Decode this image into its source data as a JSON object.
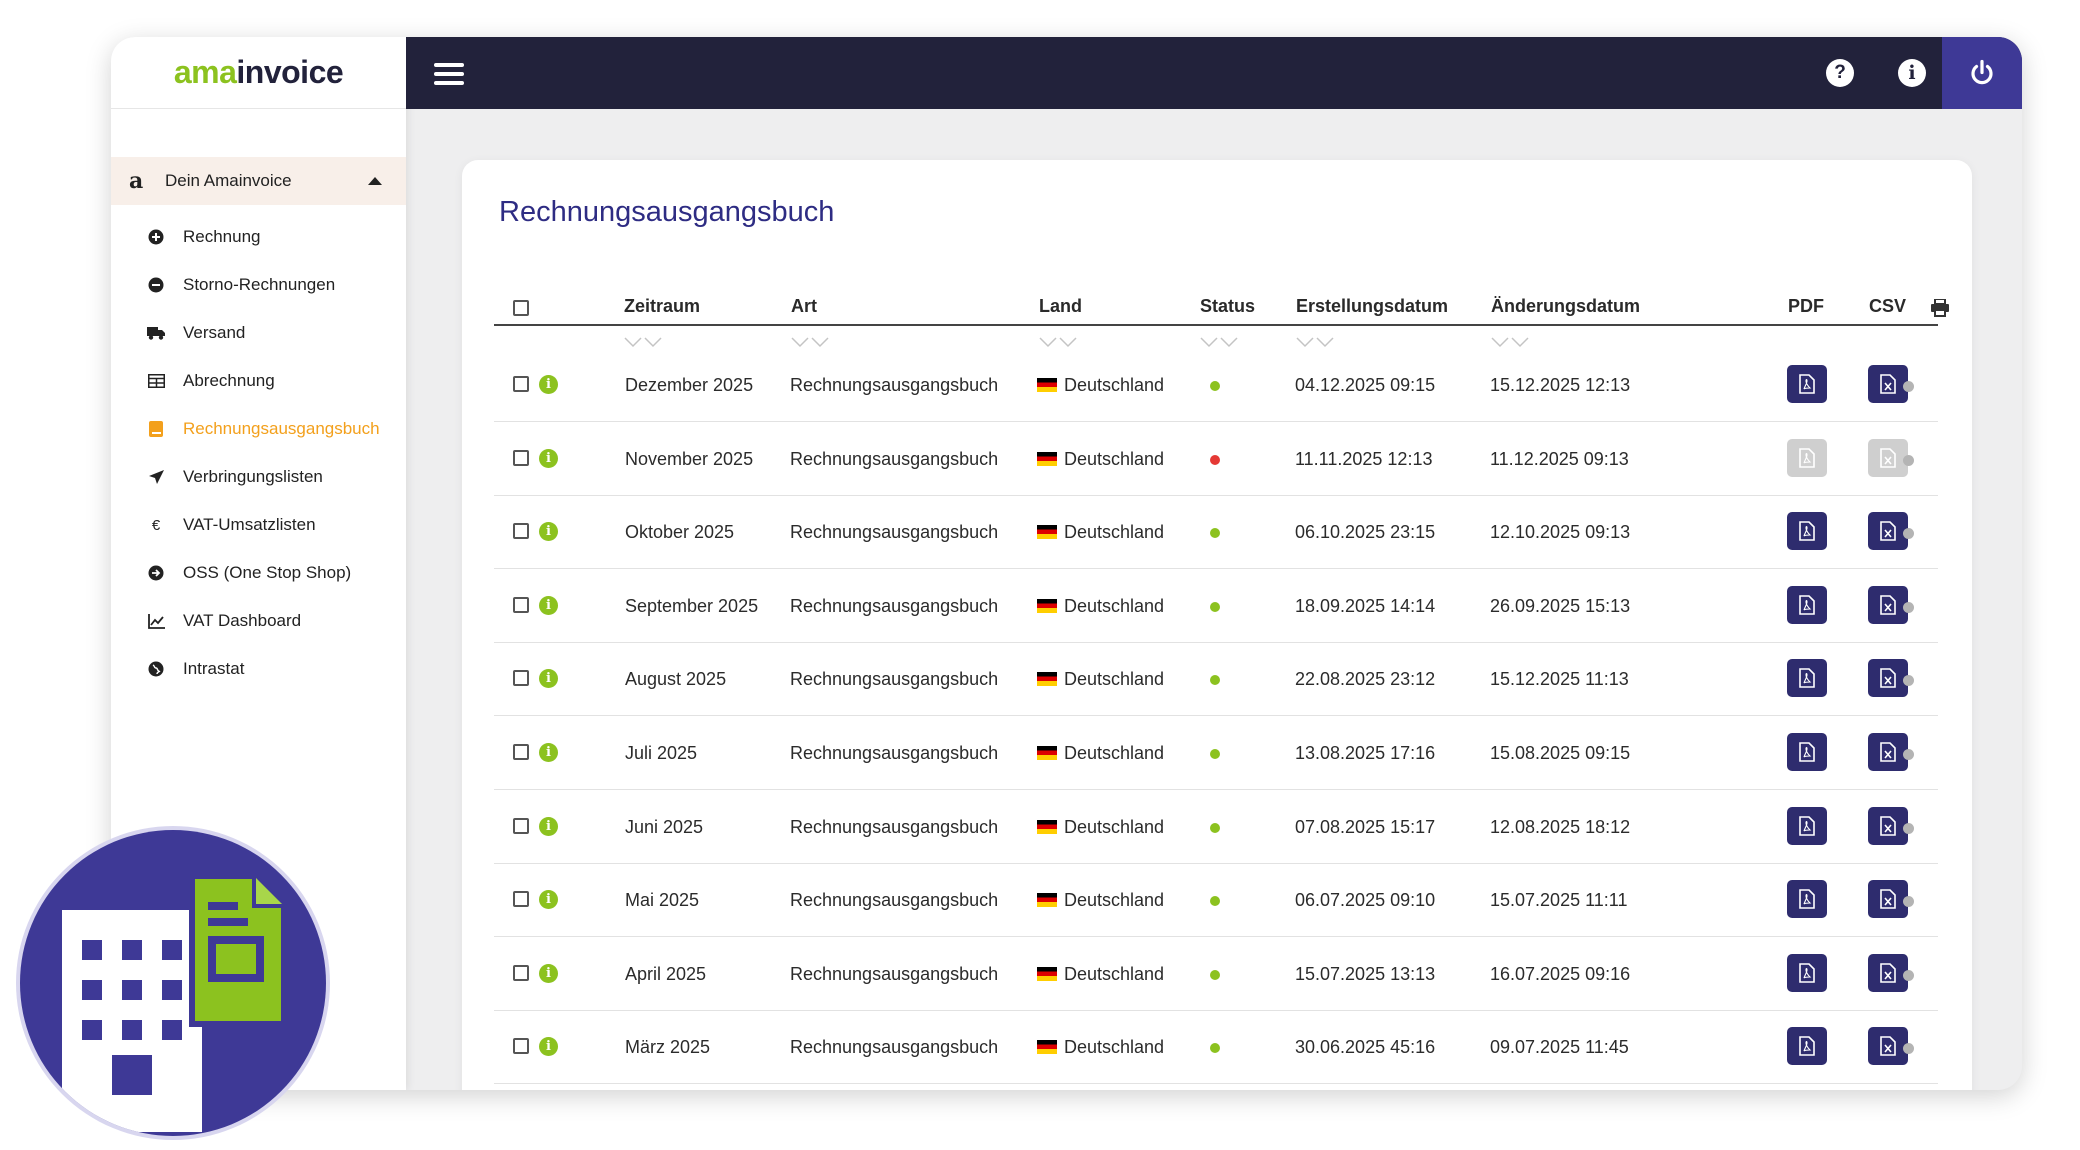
{
  "logo": {
    "part1": "ama",
    "part2": "invoice"
  },
  "sidebar": {
    "group_label": "Dein Amainvoice",
    "items": [
      {
        "label": "Rechnung",
        "icon": "plus-circle-icon"
      },
      {
        "label": "Storno-Rechnungen",
        "icon": "minus-circle-icon"
      },
      {
        "label": "Versand",
        "icon": "truck-icon"
      },
      {
        "label": "Abrechnung",
        "icon": "table-icon"
      },
      {
        "label": "Rechnungsausgangsbuch",
        "icon": "book-icon",
        "active": true
      },
      {
        "label": "Verbringungslisten",
        "icon": "plane-icon"
      },
      {
        "label": "VAT-Umsatzlisten",
        "icon": "euro-icon"
      },
      {
        "label": "OSS (One Stop Shop)",
        "icon": "arrow-circle-icon"
      },
      {
        "label": "VAT Dashboard",
        "icon": "chart-icon"
      },
      {
        "label": "Intrastat",
        "icon": "globe-icon"
      }
    ]
  },
  "topbar": {
    "help_icon": "?",
    "info_icon": "i"
  },
  "main": {
    "title": "Rechnungsausgangsbuch",
    "columns": {
      "zeitraum": "Zeitraum",
      "art": "Art",
      "land": "Land",
      "status": "Status",
      "erstellungsdatum": "Erstellungsdatum",
      "aenderungsdatum": "Änderungsdatum",
      "pdf": "PDF",
      "csv": "CSV"
    },
    "rows": [
      {
        "zeitraum": "Dezember 2025",
        "art": "Rechnungsausgangsbuch",
        "land": "Deutschland",
        "status": "ok",
        "erstellt": "04.12.2025 09:15",
        "geaendert": "15.12.2025 12:13",
        "files_available": true
      },
      {
        "zeitraum": "November 2025",
        "art": "Rechnungsausgangsbuch",
        "land": "Deutschland",
        "status": "error",
        "erstellt": "11.11.2025 12:13",
        "geaendert": "11.12.2025 09:13",
        "files_available": false
      },
      {
        "zeitraum": "Oktober 2025",
        "art": "Rechnungsausgangsbuch",
        "land": "Deutschland",
        "status": "ok",
        "erstellt": "06.10.2025 23:15",
        "geaendert": "12.10.2025 09:13",
        "files_available": true
      },
      {
        "zeitraum": "September 2025",
        "art": "Rechnungsausgangsbuch",
        "land": "Deutschland",
        "status": "ok",
        "erstellt": "18.09.2025 14:14",
        "geaendert": "26.09.2025 15:13",
        "files_available": true
      },
      {
        "zeitraum": "August 2025",
        "art": "Rechnungsausgangsbuch",
        "land": "Deutschland",
        "status": "ok",
        "erstellt": "22.08.2025 23:12",
        "geaendert": "15.12.2025 11:13",
        "files_available": true
      },
      {
        "zeitraum": "Juli 2025",
        "art": "Rechnungsausgangsbuch",
        "land": "Deutschland",
        "status": "ok",
        "erstellt": "13.08.2025 17:16",
        "geaendert": "15.08.2025 09:15",
        "files_available": true
      },
      {
        "zeitraum": "Juni 2025",
        "art": "Rechnungsausgangsbuch",
        "land": "Deutschland",
        "status": "ok",
        "erstellt": "07.08.2025 15:17",
        "geaendert": "12.08.2025 18:12",
        "files_available": true
      },
      {
        "zeitraum": "Mai 2025",
        "art": "Rechnungsausgangsbuch",
        "land": "Deutschland",
        "status": "ok",
        "erstellt": "06.07.2025 09:10",
        "geaendert": "15.07.2025 11:11",
        "files_available": true
      },
      {
        "zeitraum": "April 2025",
        "art": "Rechnungsausgangsbuch",
        "land": "Deutschland",
        "status": "ok",
        "erstellt": "15.07.2025 13:13",
        "geaendert": "16.07.2025 09:16",
        "files_available": true
      },
      {
        "zeitraum": "März 2025",
        "art": "Rechnungsausgangsbuch",
        "land": "Deutschland",
        "status": "ok",
        "erstellt": "30.06.2025 45:16",
        "geaendert": "09.07.2025 11:45",
        "files_available": true
      }
    ]
  },
  "colors": {
    "navy": "#22223b",
    "purple": "#3e3996",
    "green": "#8cc21f",
    "orange": "#f3a01c",
    "red": "#e53935",
    "file_button": "#2e2c6e"
  }
}
